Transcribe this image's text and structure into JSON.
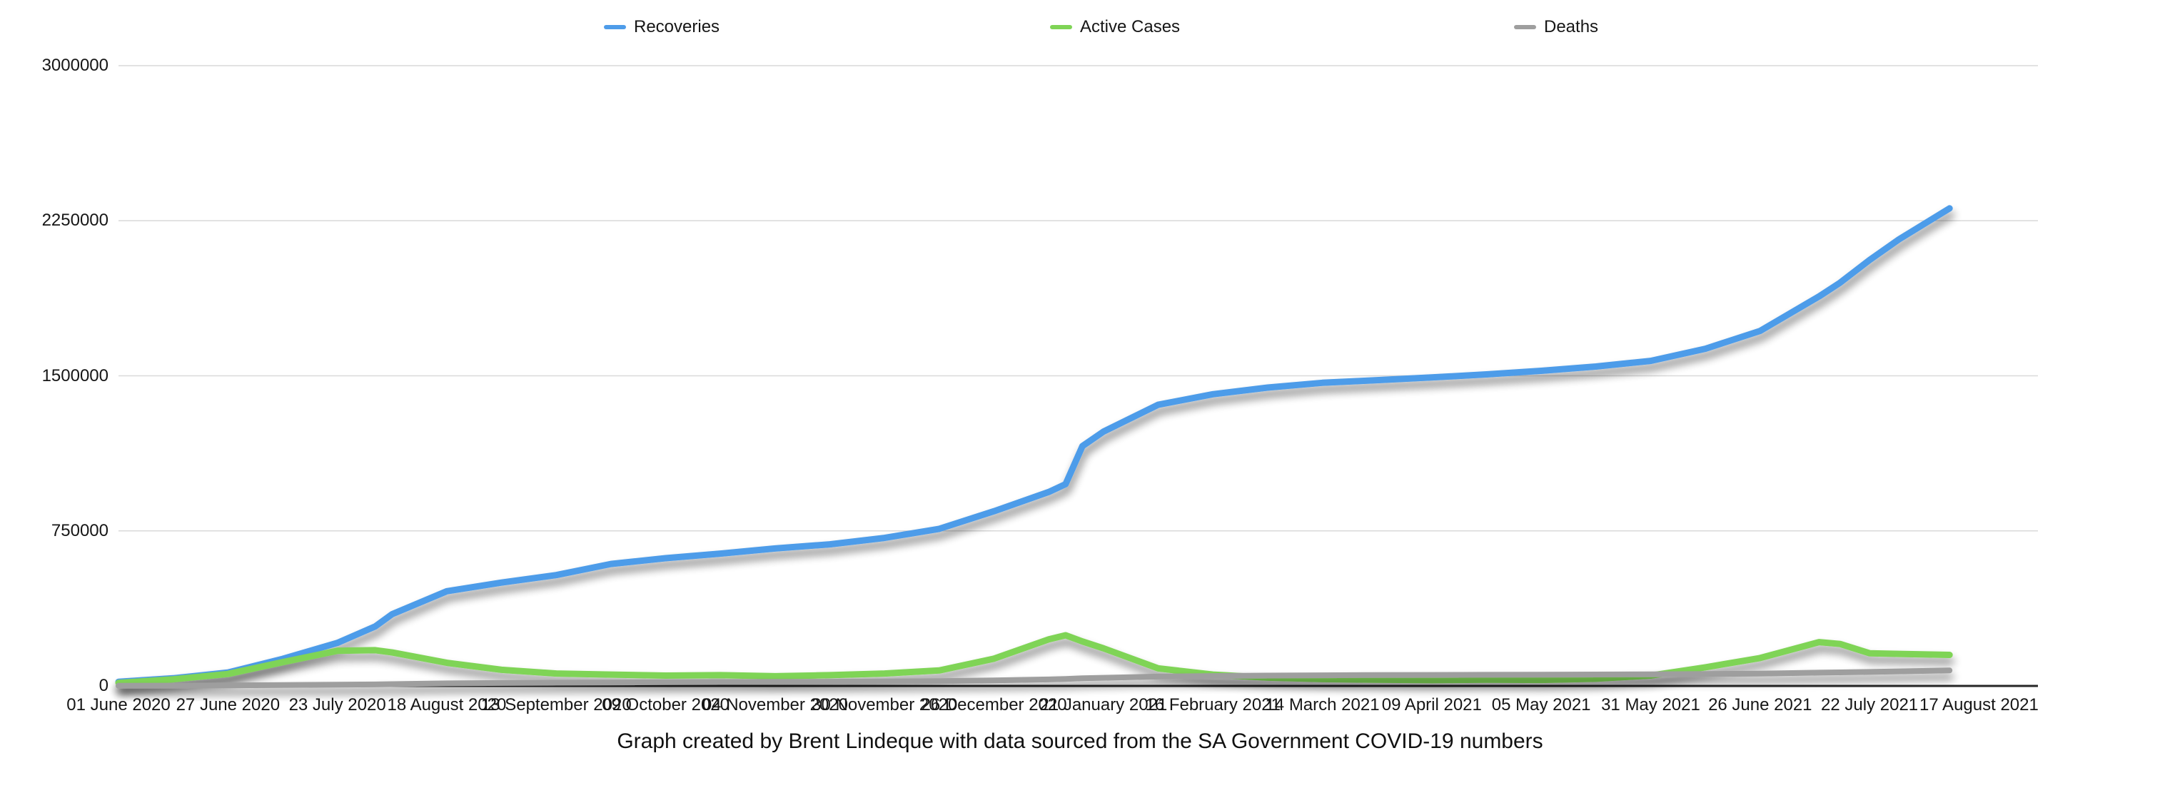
{
  "legend": [
    {
      "label": "Recoveries",
      "color": "#4e9ce9"
    },
    {
      "label": "Active Cases",
      "color": "#7fd456"
    },
    {
      "label": "Deaths",
      "color": "#9e9e9e"
    }
  ],
  "caption": "Graph created by Brent Lindeque with data sourced from the SA Government COVID-19 numbers",
  "chart_data": {
    "type": "line",
    "title": "",
    "xlabel": "",
    "ylabel": "",
    "ylim": [
      0,
      3000000
    ],
    "grid": "horizontal",
    "legend_position": "top",
    "x_domain": {
      "start": "2020-06-01",
      "end": "2021-08-31"
    },
    "y_ticks": [
      {
        "value": 0,
        "label": "0"
      },
      {
        "value": 750000,
        "label": "750000"
      },
      {
        "value": 1500000,
        "label": "1500000"
      },
      {
        "value": 2250000,
        "label": "2250000"
      },
      {
        "value": 3000000,
        "label": "3000000"
      }
    ],
    "x_ticks": [
      {
        "date": "2020-06-01",
        "label": "01 June 2020"
      },
      {
        "date": "2020-06-27",
        "label": "27 June 2020"
      },
      {
        "date": "2020-07-23",
        "label": "23 July 2020"
      },
      {
        "date": "2020-08-18",
        "label": "18 August 2020"
      },
      {
        "date": "2020-09-13",
        "label": "13 September 2020"
      },
      {
        "date": "2020-10-09",
        "label": "09 October 2020"
      },
      {
        "date": "2020-11-04",
        "label": "04 November 2020"
      },
      {
        "date": "2020-11-30",
        "label": "30 November 2020"
      },
      {
        "date": "2020-12-26",
        "label": "26 December 2020"
      },
      {
        "date": "2021-01-21",
        "label": "21 January 2021"
      },
      {
        "date": "2021-02-16",
        "label": "16 February 2021"
      },
      {
        "date": "2021-03-14",
        "label": "14 March 2021"
      },
      {
        "date": "2021-04-09",
        "label": "09 April 2021"
      },
      {
        "date": "2021-05-05",
        "label": "05 May 2021"
      },
      {
        "date": "2021-05-31",
        "label": "31 May 2021"
      },
      {
        "date": "2021-06-26",
        "label": "26 June 2021"
      },
      {
        "date": "2021-07-22",
        "label": "22 July 2021"
      },
      {
        "date": "2021-08-17",
        "label": "17 August 2021"
      }
    ],
    "x": [
      "2020-06-01",
      "2020-06-14",
      "2020-06-27",
      "2020-07-10",
      "2020-07-23",
      "2020-08-01",
      "2020-08-05",
      "2020-08-18",
      "2020-08-31",
      "2020-09-13",
      "2020-09-26",
      "2020-10-09",
      "2020-10-22",
      "2020-11-04",
      "2020-11-17",
      "2020-11-30",
      "2020-12-13",
      "2020-12-26",
      "2021-01-08",
      "2021-01-12",
      "2021-01-16",
      "2021-01-21",
      "2021-02-03",
      "2021-02-16",
      "2021-03-01",
      "2021-03-14",
      "2021-03-27",
      "2021-04-09",
      "2021-04-22",
      "2021-05-05",
      "2021-05-18",
      "2021-05-31",
      "2021-06-13",
      "2021-06-26",
      "2021-07-10",
      "2021-07-15",
      "2021-07-22",
      "2021-07-29",
      "2021-08-10"
    ],
    "series": [
      {
        "name": "Recoveries",
        "color": "#4e9ce9",
        "stroke_width": 9,
        "values": [
          20000,
          37000,
          65000,
          131000,
          208000,
          288000,
          347000,
          458000,
          500000,
          536000,
          590000,
          618000,
          640000,
          665000,
          685000,
          716000,
          760000,
          845000,
          938000,
          976000,
          1160000,
          1230000,
          1360000,
          1411000,
          1443000,
          1466000,
          1479000,
          1492000,
          1507000,
          1524000,
          1545000,
          1572000,
          1631000,
          1717000,
          1884000,
          1950000,
          2060000,
          2160000,
          2310000
        ]
      },
      {
        "name": "Active Cases",
        "color": "#7fd456",
        "stroke_width": 9,
        "values": [
          15000,
          32000,
          58000,
          115000,
          170000,
          173000,
          162000,
          112000,
          78000,
          60000,
          55000,
          50000,
          52000,
          47000,
          52000,
          60000,
          75000,
          132000,
          225000,
          245000,
          215000,
          182000,
          85000,
          55000,
          40000,
          33000,
          30000,
          28000,
          30000,
          29000,
          35000,
          50000,
          90000,
          135000,
          212000,
          203000,
          158000,
          155000,
          150000
        ]
      },
      {
        "name": "Deaths",
        "color": "#9e9e9e",
        "stroke_width": 8,
        "values": [
          700,
          1400,
          2500,
          4000,
          6000,
          7100,
          8500,
          12300,
          14100,
          15400,
          16400,
          17900,
          18900,
          19700,
          20300,
          21500,
          23300,
          26700,
          31400,
          33600,
          36900,
          39500,
          45300,
          48100,
          50100,
          51300,
          52700,
          53300,
          54000,
          54600,
          55200,
          56400,
          57700,
          59600,
          64300,
          65600,
          67700,
          70400,
          75000
        ]
      }
    ]
  }
}
